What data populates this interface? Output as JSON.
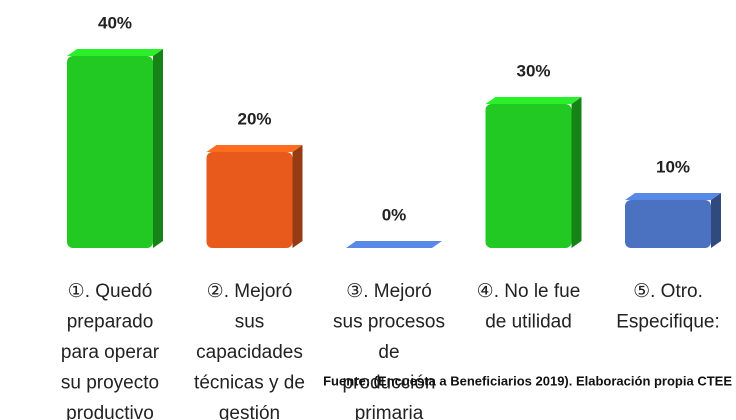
{
  "chart_data": {
    "type": "bar3d",
    "categories": [
      [
        "①. Quedó",
        "preparado",
        "para operar",
        "su proyecto",
        "productivo"
      ],
      [
        "②. Mejoró",
        "sus",
        "capacidades",
        "técnicas y de",
        "gestión"
      ],
      [
        "③. Mejoró",
        "sus procesos",
        "de",
        "producción",
        "primaria"
      ],
      [
        "④. No le fue",
        "de utilidad"
      ],
      [
        "⑤. Otro.",
        "Especifique:"
      ]
    ],
    "values": [
      40,
      20,
      0,
      30,
      10
    ],
    "value_labels": [
      "40%",
      "20%",
      "0%",
      "30%",
      "10%"
    ],
    "colors": [
      "#22c922",
      "#e85a1b",
      "#4a72c0",
      "#22c922",
      "#4a72c0"
    ],
    "source": "Fuente: (Encuesta a Beneficiarios 2019). Elaboración propia CTEE"
  }
}
